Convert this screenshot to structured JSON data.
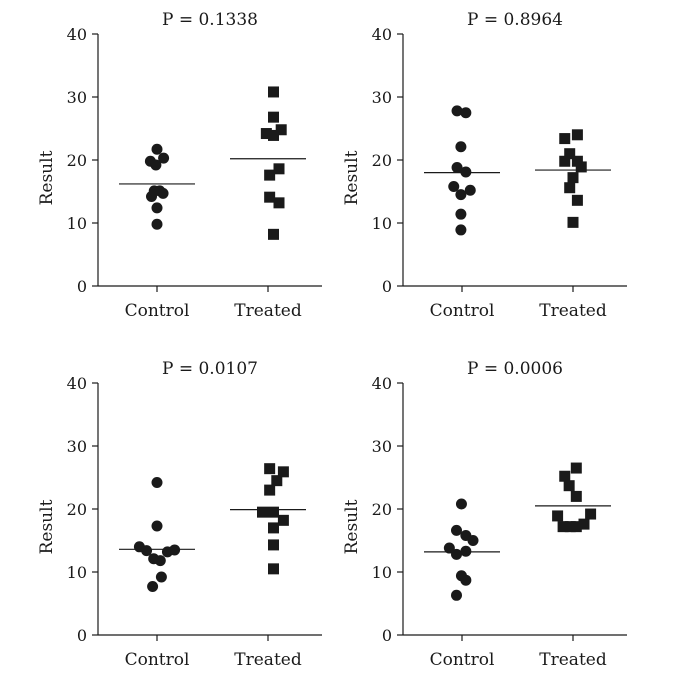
{
  "chart_data": [
    {
      "type": "scatter",
      "title": "P = 0.1338",
      "ylabel": "Result",
      "ylim": [
        0,
        40
      ],
      "yticks": [
        0,
        10,
        20,
        30,
        40
      ],
      "categories": [
        "Control",
        "Treated"
      ],
      "series": [
        {
          "name": "Control",
          "marker": "circle",
          "mean": 16.2,
          "points": [
            [
              -0.12,
              19.8
            ],
            [
              0.0,
              21.7
            ],
            [
              0.12,
              20.3
            ],
            [
              -0.02,
              19.2
            ],
            [
              -0.1,
              14.2
            ],
            [
              -0.05,
              15.1
            ],
            [
              0.05,
              15.1
            ],
            [
              0.11,
              14.7
            ],
            [
              0.0,
              12.4
            ],
            [
              0.0,
              9.8
            ]
          ]
        },
        {
          "name": "Treated",
          "marker": "square",
          "mean": 20.2,
          "points": [
            [
              0.1,
              30.8
            ],
            [
              0.1,
              26.8
            ],
            [
              -0.03,
              24.2
            ],
            [
              0.1,
              23.9
            ],
            [
              0.24,
              24.8
            ],
            [
              0.03,
              17.6
            ],
            [
              0.2,
              18.6
            ],
            [
              0.03,
              14.1
            ],
            [
              0.2,
              13.2
            ],
            [
              0.1,
              8.2
            ]
          ]
        }
      ]
    },
    {
      "type": "scatter",
      "title": "P = 0.8964",
      "ylabel": "Result",
      "ylim": [
        0,
        40
      ],
      "yticks": [
        0,
        10,
        20,
        30,
        40
      ],
      "categories": [
        "Control",
        "Treated"
      ],
      "series": [
        {
          "name": "Control",
          "marker": "circle",
          "mean": 18.0,
          "points": [
            [
              -0.09,
              27.8
            ],
            [
              0.07,
              27.5
            ],
            [
              -0.02,
              22.1
            ],
            [
              -0.09,
              18.8
            ],
            [
              0.07,
              18.1
            ],
            [
              -0.15,
              15.8
            ],
            [
              -0.02,
              14.5
            ],
            [
              0.15,
              15.2
            ],
            [
              -0.02,
              11.4
            ],
            [
              -0.02,
              8.9
            ]
          ]
        },
        {
          "name": "Treated",
          "marker": "square",
          "mean": 18.4,
          "points": [
            [
              -0.15,
              23.4
            ],
            [
              0.08,
              24.0
            ],
            [
              -0.06,
              21.0
            ],
            [
              -0.15,
              19.8
            ],
            [
              0.08,
              19.8
            ],
            [
              0.15,
              18.9
            ],
            [
              0.0,
              17.2
            ],
            [
              -0.06,
              15.6
            ],
            [
              0.08,
              13.6
            ],
            [
              0.0,
              10.1
            ]
          ]
        }
      ]
    },
    {
      "type": "scatter",
      "title": "P = 0.0107",
      "ylabel": "Result",
      "ylim": [
        0,
        40
      ],
      "yticks": [
        0,
        10,
        20,
        30,
        40
      ],
      "categories": [
        "Control",
        "Treated"
      ],
      "series": [
        {
          "name": "Control",
          "marker": "circle",
          "mean": 13.6,
          "points": [
            [
              0.0,
              24.2
            ],
            [
              0.0,
              17.3
            ],
            [
              -0.32,
              14.0
            ],
            [
              -0.19,
              13.4
            ],
            [
              0.19,
              13.2
            ],
            [
              0.32,
              13.5
            ],
            [
              -0.06,
              12.1
            ],
            [
              0.06,
              11.8
            ],
            [
              0.08,
              9.2
            ],
            [
              -0.08,
              7.7
            ]
          ]
        },
        {
          "name": "Treated",
          "marker": "square",
          "mean": 19.9,
          "points": [
            [
              0.03,
              26.4
            ],
            [
              0.28,
              25.9
            ],
            [
              0.16,
              24.5
            ],
            [
              0.03,
              23.0
            ],
            [
              -0.1,
              19.5
            ],
            [
              0.1,
              19.5
            ],
            [
              0.28,
              18.2
            ],
            [
              0.1,
              17.0
            ],
            [
              0.1,
              14.3
            ],
            [
              0.1,
              10.5
            ]
          ]
        }
      ]
    },
    {
      "type": "scatter",
      "title": "P = 0.0006",
      "ylabel": "Result",
      "ylim": [
        0,
        40
      ],
      "yticks": [
        0,
        10,
        20,
        30,
        40
      ],
      "categories": [
        "Control",
        "Treated"
      ],
      "series": [
        {
          "name": "Control",
          "marker": "circle",
          "mean": 13.2,
          "points": [
            [
              -0.01,
              20.8
            ],
            [
              -0.1,
              16.6
            ],
            [
              0.07,
              15.8
            ],
            [
              0.2,
              15.0
            ],
            [
              -0.23,
              13.8
            ],
            [
              -0.1,
              12.8
            ],
            [
              0.07,
              13.3
            ],
            [
              -0.01,
              9.4
            ],
            [
              0.07,
              8.7
            ],
            [
              -0.1,
              6.3
            ]
          ]
        },
        {
          "name": "Treated",
          "marker": "square",
          "mean": 20.5,
          "points": [
            [
              0.06,
              26.5
            ],
            [
              -0.15,
              25.2
            ],
            [
              -0.07,
              23.7
            ],
            [
              0.06,
              22.0
            ],
            [
              -0.28,
              18.9
            ],
            [
              -0.18,
              17.2
            ],
            [
              -0.05,
              17.2
            ],
            [
              0.06,
              17.2
            ],
            [
              0.2,
              17.6
            ],
            [
              0.32,
              19.2
            ]
          ]
        }
      ]
    }
  ]
}
